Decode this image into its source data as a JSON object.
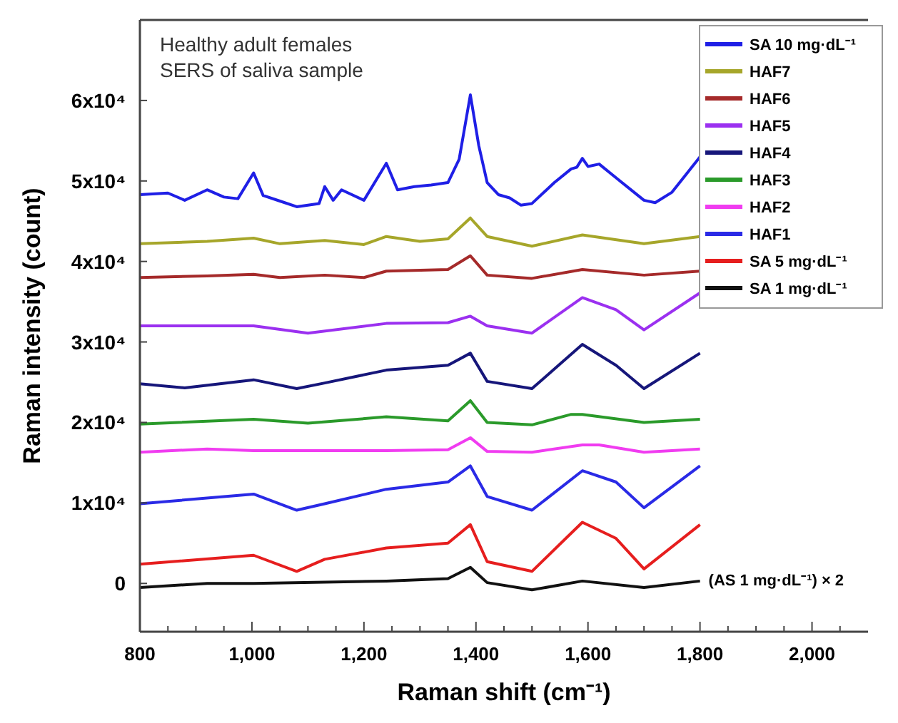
{
  "chart_data": {
    "type": "line",
    "title": "Healthy adult females",
    "subtitle": "SERS of saliva sample",
    "xlabel": "Raman shift (cm⁻¹)",
    "ylabel": "Raman intensity (count)",
    "xlim": [
      800,
      2100
    ],
    "ylim": [
      -6000,
      70000
    ],
    "xticks": [
      {
        "value": 800,
        "label": "800"
      },
      {
        "value": 850,
        "label": null
      },
      {
        "value": 900,
        "label": null
      },
      {
        "value": 950,
        "label": null
      },
      {
        "value": 1000,
        "label": "1,000"
      },
      {
        "value": 1050,
        "label": null
      },
      {
        "value": 1100,
        "label": null
      },
      {
        "value": 1150,
        "label": null
      },
      {
        "value": 1200,
        "label": "1,200"
      },
      {
        "value": 1250,
        "label": null
      },
      {
        "value": 1300,
        "label": null
      },
      {
        "value": 1350,
        "label": null
      },
      {
        "value": 1400,
        "label": "1,400"
      },
      {
        "value": 1450,
        "label": null
      },
      {
        "value": 1500,
        "label": null
      },
      {
        "value": 1550,
        "label": null
      },
      {
        "value": 1600,
        "label": "1,600"
      },
      {
        "value": 1650,
        "label": null
      },
      {
        "value": 1700,
        "label": null
      },
      {
        "value": 1750,
        "label": null
      },
      {
        "value": 1800,
        "label": "1,800"
      },
      {
        "value": 1850,
        "label": null
      },
      {
        "value": 1900,
        "label": null
      },
      {
        "value": 1950,
        "label": null
      },
      {
        "value": 2000,
        "label": "2,000"
      },
      {
        "value": 2050,
        "label": null
      }
    ],
    "yticks": [
      {
        "value": 0,
        "label": "0"
      },
      {
        "value": 10000,
        "label": "1x10⁴"
      },
      {
        "value": 20000,
        "label": "2x10⁴"
      },
      {
        "value": 30000,
        "label": "3x10⁴"
      },
      {
        "value": 40000,
        "label": "4x10⁴"
      },
      {
        "value": 50000,
        "label": "5x10⁴"
      },
      {
        "value": 60000,
        "label": "6x10⁴"
      }
    ],
    "grid": false,
    "legend": "top right",
    "marker": "none",
    "line_style": "solid",
    "annotations": [
      {
        "text": "(AS 1 mg·dL⁻¹) × 2",
        "x": 1800,
        "y": 500
      }
    ],
    "series": [
      {
        "name": "SA 10 mg·dL⁻¹",
        "color": "#1f1fe6",
        "x": [
          800,
          850,
          880,
          920,
          950,
          975,
          1003,
          1020,
          1050,
          1080,
          1120,
          1130,
          1145,
          1160,
          1200,
          1240,
          1260,
          1290,
          1320,
          1350,
          1370,
          1390,
          1405,
          1420,
          1440,
          1460,
          1480,
          1500,
          1540,
          1570,
          1580,
          1590,
          1600,
          1620,
          1650,
          1700,
          1720,
          1750,
          1800
        ],
        "values": [
          48300,
          48500,
          47600,
          48900,
          48000,
          47800,
          51000,
          48200,
          47500,
          46800,
          47200,
          49300,
          47600,
          48900,
          47600,
          52200,
          48900,
          49300,
          49500,
          49800,
          52700,
          60700,
          54400,
          49800,
          48300,
          47900,
          47000,
          47200,
          49800,
          51500,
          51700,
          52800,
          51800,
          52100,
          50400,
          47600,
          47300,
          48600,
          53000
        ]
      },
      {
        "name": "HAF7",
        "color": "#a6a62a",
        "x": [
          800,
          920,
          1003,
          1050,
          1130,
          1200,
          1240,
          1300,
          1350,
          1390,
          1420,
          1460,
          1500,
          1590,
          1700,
          1800
        ],
        "values": [
          42200,
          42500,
          42900,
          42200,
          42600,
          42100,
          43100,
          42500,
          42800,
          45400,
          43100,
          42500,
          41900,
          43300,
          42200,
          43100
        ]
      },
      {
        "name": "HAF6",
        "color": "#a52a2a",
        "x": [
          800,
          920,
          1003,
          1050,
          1130,
          1200,
          1240,
          1350,
          1390,
          1420,
          1500,
          1590,
          1700,
          1800
        ],
        "values": [
          38000,
          38200,
          38400,
          38000,
          38300,
          38000,
          38800,
          39000,
          40700,
          38300,
          37900,
          39000,
          38300,
          38800
        ]
      },
      {
        "name": "HAF5",
        "color": "#9b30f0",
        "x": [
          800,
          1003,
          1100,
          1240,
          1350,
          1390,
          1420,
          1500,
          1590,
          1650,
          1700,
          1800
        ],
        "values": [
          32000,
          32000,
          31100,
          32300,
          32400,
          33200,
          32000,
          31100,
          35500,
          34000,
          31500,
          36100
        ]
      },
      {
        "name": "HAF4",
        "color": "#16167a",
        "x": [
          800,
          880,
          1003,
          1080,
          1130,
          1240,
          1350,
          1390,
          1420,
          1500,
          1590,
          1650,
          1700,
          1800
        ],
        "values": [
          24800,
          24300,
          25300,
          24200,
          24900,
          26500,
          27100,
          28600,
          25100,
          24200,
          29700,
          27100,
          24200,
          28600
        ]
      },
      {
        "name": "HAF3",
        "color": "#2a9a2a",
        "x": [
          800,
          1003,
          1100,
          1240,
          1350,
          1390,
          1420,
          1500,
          1570,
          1590,
          1700,
          1800
        ],
        "values": [
          19800,
          20400,
          19900,
          20700,
          20200,
          22700,
          20000,
          19700,
          21000,
          21000,
          20000,
          20400
        ]
      },
      {
        "name": "HAF2",
        "color": "#f03cf0",
        "x": [
          800,
          920,
          1003,
          1240,
          1350,
          1390,
          1420,
          1500,
          1590,
          1620,
          1700,
          1800
        ],
        "values": [
          16300,
          16700,
          16500,
          16500,
          16600,
          18100,
          16400,
          16300,
          17200,
          17200,
          16300,
          16700
        ]
      },
      {
        "name": "HAF1",
        "color": "#2a2ae6",
        "x": [
          800,
          1003,
          1080,
          1130,
          1240,
          1350,
          1390,
          1420,
          1500,
          1590,
          1650,
          1700,
          1800
        ],
        "values": [
          9900,
          11100,
          9100,
          9900,
          11700,
          12600,
          14600,
          10800,
          9100,
          14000,
          12600,
          9400,
          14600
        ]
      },
      {
        "name": "SA 5 mg·dL⁻¹",
        "color": "#e61e1e",
        "x": [
          800,
          1003,
          1080,
          1130,
          1240,
          1350,
          1390,
          1420,
          1500,
          1590,
          1650,
          1700,
          1800
        ],
        "values": [
          2400,
          3500,
          1500,
          3000,
          4400,
          5000,
          7300,
          2700,
          1500,
          7600,
          5600,
          1800,
          7300
        ]
      },
      {
        "name": "SA 1 mg·dL⁻¹",
        "color": "#111111",
        "x": [
          800,
          920,
          1003,
          1240,
          1350,
          1390,
          1420,
          1500,
          1590,
          1700,
          1800
        ],
        "values": [
          -500,
          0,
          0,
          300,
          600,
          2000,
          100,
          -800,
          300,
          -500,
          300
        ]
      }
    ]
  }
}
